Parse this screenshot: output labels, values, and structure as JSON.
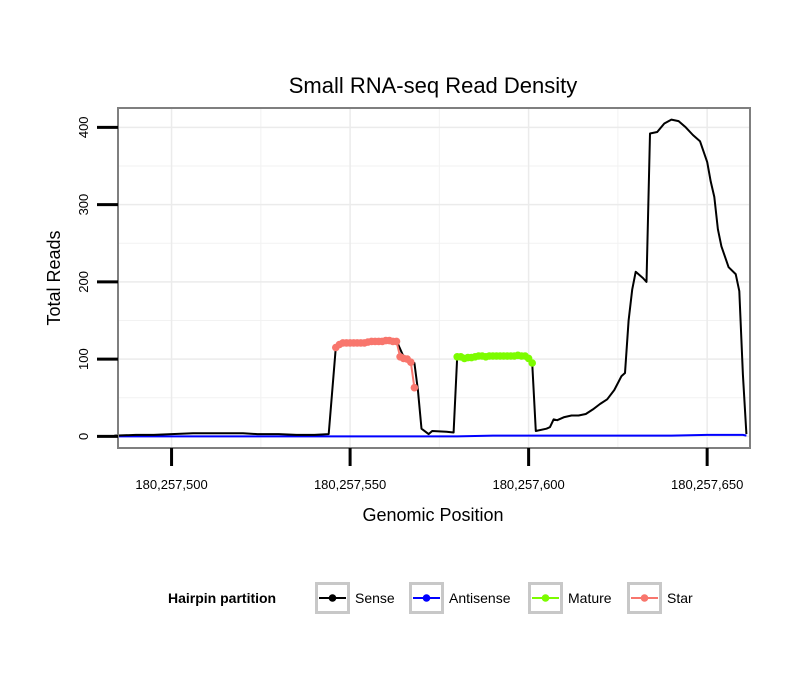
{
  "chart_data": {
    "type": "line",
    "title": "Small RNA-seq Read Density",
    "xlabel": "Genomic Position",
    "ylabel": "Total Reads",
    "xlim": [
      257485,
      257662
    ],
    "ylim": [
      -15,
      425
    ],
    "x_ticks": [
      257500,
      257550,
      257600,
      257650
    ],
    "x_tick_labels": [
      "180,257,500",
      "180,257,550",
      "180,257,600",
      "180,257,650"
    ],
    "y_ticks": [
      0,
      100,
      200,
      300,
      400
    ],
    "y_tick_labels": [
      "0",
      "100",
      "200",
      "300",
      "400"
    ],
    "x_offset_note": "x values are genomic positions minus 180,000,000",
    "legend": {
      "title": "Hairpin partition",
      "placement": "bottom",
      "entries": [
        {
          "label": "Sense",
          "color": "#000000"
        },
        {
          "label": "Antisense",
          "color": "#0000ff"
        },
        {
          "label": "Mature",
          "color": "#7cfc00"
        },
        {
          "label": "Star",
          "color": "#f8766d"
        }
      ]
    },
    "series": [
      {
        "name": "Sense",
        "color": "#000000",
        "x": [
          257484,
          257490,
          257495,
          257500,
          257506,
          257510,
          257520,
          257524,
          257530,
          257535,
          257540,
          257544,
          257546,
          257547,
          257550,
          257555,
          257560,
          257563,
          257565,
          257566,
          257568,
          257569,
          257570,
          257572,
          257573,
          257577,
          257579,
          257580,
          257581,
          257590,
          257600,
          257601,
          257602,
          257605,
          257606,
          257607,
          257608,
          257610,
          257612,
          257614,
          257616,
          257618,
          257620,
          257622,
          257624,
          257626,
          257627,
          257628,
          257629,
          257630,
          257632,
          257633,
          257634,
          257636,
          257638,
          257640,
          257642,
          257644,
          257646,
          257648,
          257650,
          257651,
          257652,
          257653,
          257654,
          257656,
          257658,
          257659,
          257660,
          257661
        ],
        "values": [
          1,
          2,
          2,
          3,
          4,
          4,
          4,
          3,
          3,
          2,
          2,
          3,
          115,
          120,
          121,
          122,
          124,
          124,
          103,
          100,
          95,
          60,
          10,
          3,
          7,
          6,
          5,
          103,
          101,
          104,
          104,
          95,
          7,
          10,
          12,
          22,
          21,
          25,
          27,
          27,
          29,
          35,
          42,
          48,
          60,
          78,
          82,
          150,
          190,
          213,
          205,
          200,
          392,
          394,
          405,
          410,
          408,
          400,
          390,
          382,
          355,
          330,
          310,
          268,
          246,
          219,
          210,
          188,
          80,
          3
        ]
      },
      {
        "name": "Antisense",
        "color": "#0000ff",
        "x": [
          257484,
          257500,
          257520,
          257540,
          257560,
          257580,
          257590,
          257600,
          257620,
          257640,
          257650,
          257660,
          257661
        ],
        "values": [
          0,
          0,
          0,
          0,
          0,
          0,
          1,
          1,
          1,
          1,
          2,
          2,
          1
        ]
      },
      {
        "name": "Mature",
        "color": "#7cfc00",
        "x": [
          257580,
          257581,
          257582,
          257583,
          257584,
          257585,
          257586,
          257587,
          257588,
          257589,
          257590,
          257591,
          257592,
          257593,
          257594,
          257595,
          257596,
          257597,
          257598,
          257599,
          257600,
          257601
        ],
        "values": [
          103,
          103,
          101,
          102,
          102,
          103,
          104,
          104,
          103,
          104,
          104,
          104,
          104,
          104,
          104,
          104,
          104,
          105,
          104,
          104,
          101,
          95
        ]
      },
      {
        "name": "Star",
        "color": "#f8766d",
        "x": [
          257546,
          257547,
          257548,
          257549,
          257550,
          257551,
          257552,
          257553,
          257554,
          257555,
          257556,
          257557,
          257558,
          257559,
          257560,
          257561,
          257562,
          257563,
          257564,
          257565,
          257566,
          257567,
          257568
        ],
        "values": [
          115,
          119,
          121,
          121,
          121,
          121,
          121,
          121,
          121,
          122,
          123,
          123,
          123,
          123,
          124,
          124,
          123,
          123,
          103,
          101,
          100,
          96,
          63
        ]
      }
    ]
  }
}
